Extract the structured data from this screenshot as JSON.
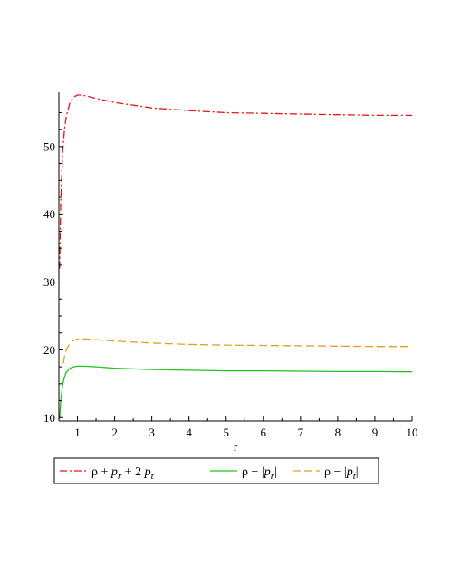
{
  "chart_data": {
    "type": "line",
    "xlabel": "r",
    "ylabel": "",
    "xlim": [
      0.5,
      10
    ],
    "ylim": [
      9.5,
      58
    ],
    "x_ticks": [
      1,
      2,
      3,
      4,
      5,
      6,
      7,
      8,
      9,
      10
    ],
    "y_ticks": [
      10,
      20,
      30,
      40,
      50
    ],
    "grid": false,
    "legend_position": "bottom",
    "series": [
      {
        "name": "ρ + p_r + 2 p_t",
        "color": "#e8141a",
        "dash": "dash-dot",
        "legend": [
          "ρ + ",
          "p",
          "r",
          " + 2 ",
          "p",
          "t"
        ],
        "x": [
          0.52,
          0.55,
          0.6,
          0.65,
          0.7,
          0.8,
          0.9,
          1.0,
          1.1,
          1.2,
          1.5,
          2,
          3,
          4,
          5,
          6,
          7,
          8,
          9,
          10
        ],
        "y": [
          32,
          42,
          49,
          52.5,
          54.5,
          56.5,
          57.3,
          57.6,
          57.6,
          57.5,
          57.1,
          56.5,
          55.7,
          55.3,
          55.0,
          54.9,
          54.8,
          54.7,
          54.6,
          54.6
        ]
      },
      {
        "name": "ρ − |p_r|",
        "color": "#1ec41e",
        "dash": "solid",
        "legend": [
          "ρ − |",
          "p",
          "r",
          "|"
        ],
        "x": [
          0.52,
          0.55,
          0.6,
          0.65,
          0.7,
          0.8,
          0.9,
          1.0,
          1.1,
          1.2,
          1.5,
          2,
          3,
          4,
          5,
          6,
          7,
          8,
          9,
          10
        ],
        "y": [
          9.8,
          12.5,
          14.8,
          16.0,
          16.7,
          17.3,
          17.5,
          17.6,
          17.6,
          17.6,
          17.5,
          17.3,
          17.1,
          17.0,
          16.9,
          16.9,
          16.85,
          16.8,
          16.8,
          16.75
        ]
      },
      {
        "name": "ρ − |p_t|",
        "color": "#d9a520",
        "dash": "dashed",
        "legend": [
          "ρ − |",
          "p",
          "t",
          "|"
        ],
        "x": [
          0.62,
          0.65,
          0.7,
          0.8,
          0.9,
          1.0,
          1.1,
          1.2,
          1.5,
          2,
          3,
          4,
          5,
          6,
          7,
          8,
          9,
          10
        ],
        "y": [
          18.0,
          19.0,
          20.0,
          21.0,
          21.4,
          21.6,
          21.6,
          21.6,
          21.5,
          21.3,
          21.0,
          20.8,
          20.7,
          20.65,
          20.6,
          20.55,
          20.5,
          20.5
        ]
      }
    ]
  }
}
